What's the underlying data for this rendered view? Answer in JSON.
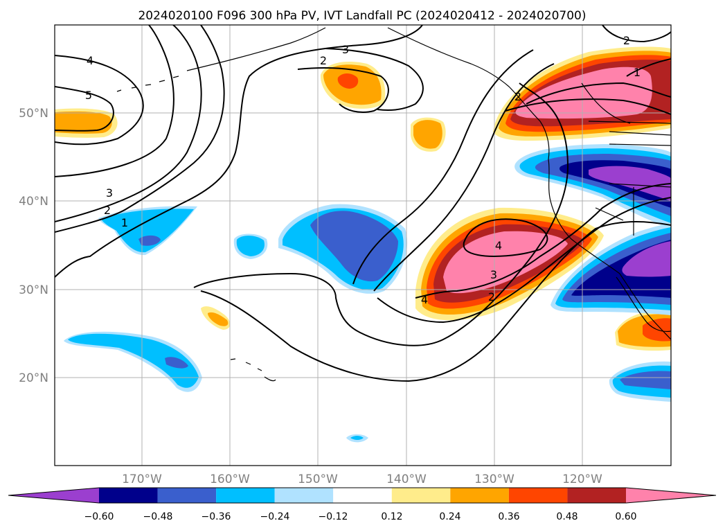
{
  "title": "2024020100 F096 300 hPa PV, IVT Landfall PC (2024020412 - 2024020700)",
  "map": {
    "lat_labels": [
      "50°N",
      "40°N",
      "30°N",
      "20°N"
    ],
    "lon_labels": [
      "170°W",
      "160°W",
      "150°W",
      "140°W",
      "130°W",
      "120°W"
    ],
    "pv_contour_labels": [
      "4",
      "5",
      "3",
      "2",
      "1",
      "2",
      "3",
      "2",
      "4",
      "3",
      "2",
      "4",
      "1",
      "2"
    ]
  },
  "colorbar": {
    "ticks": [
      "−0.60",
      "−0.48",
      "−0.36",
      "−0.24",
      "−0.12",
      "0.12",
      "0.24",
      "0.36",
      "0.48",
      "0.60"
    ],
    "colors": [
      "#9b3fcf",
      "#00008b",
      "#3a5fcd",
      "#00bfff",
      "#b0e2ff",
      "#ffffff",
      "#ffec8b",
      "#ffa500",
      "#ff4500",
      "#b22222",
      "#ff82ab"
    ]
  }
}
